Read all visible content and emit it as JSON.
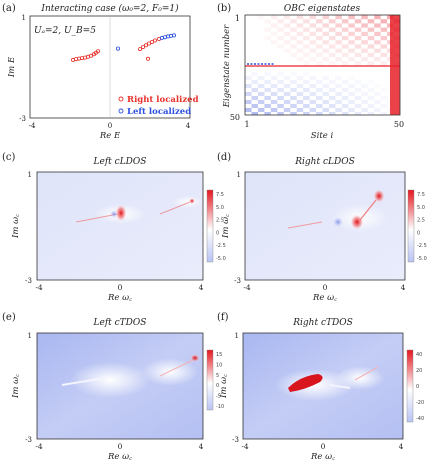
{
  "chart_data": [
    {
      "id": "a",
      "type": "scatter",
      "panel_label": "(a)",
      "title": "Interacting case (ω₀=2, F₀=1)",
      "params": "Uₐ=2, U_B=5",
      "xlabel": "Re E",
      "ylabel": "Im E",
      "xlim": [
        -4,
        4
      ],
      "ylim": [
        -3,
        1
      ],
      "x_ticks": [
        "-4",
        "0",
        "4"
      ],
      "y_ticks": [
        "1",
        "-3"
      ],
      "legend": "bottom-right",
      "series": [
        {
          "name": "Right localized",
          "color": "#e8312a",
          "points": [
            [
              -1.85,
              -0.72
            ],
            [
              -1.7,
              -0.69
            ],
            [
              -1.55,
              -0.67
            ],
            [
              -1.4,
              -0.65
            ],
            [
              -1.25,
              -0.63
            ],
            [
              -1.1,
              -0.6
            ],
            [
              -0.95,
              -0.56
            ],
            [
              -0.8,
              -0.5
            ],
            [
              -0.7,
              -0.44
            ],
            [
              -0.6,
              -0.38
            ],
            [
              1.5,
              -0.3
            ],
            [
              1.65,
              -0.22
            ],
            [
              1.8,
              -0.15
            ],
            [
              1.95,
              -0.08
            ],
            [
              2.1,
              -0.02
            ],
            [
              2.25,
              0.04
            ],
            [
              2.45,
              0.1
            ],
            [
              1.9,
              -0.68
            ]
          ]
        },
        {
          "name": "Left localized",
          "color": "#2b4fe0",
          "points": [
            [
              2.6,
              0.14
            ],
            [
              2.75,
              0.17
            ],
            [
              2.9,
              0.2
            ],
            [
              3.05,
              0.22
            ],
            [
              3.2,
              0.24
            ],
            [
              0.4,
              -0.28
            ]
          ]
        }
      ]
    },
    {
      "id": "b",
      "type": "heatmap",
      "panel_label": "(b)",
      "title": "OBC eigenstates",
      "xlabel": "Site i",
      "ylabel": "Eigenstate number",
      "x_ticks": [
        "1",
        "50"
      ],
      "y_ticks": [
        "1",
        "50"
      ]
    },
    {
      "id": "c",
      "type": "heatmap",
      "panel_label": "(c)",
      "title": "Left cLDOS",
      "xlabel": "Re ω꜀",
      "ylabel": "Im ω꜀",
      "x_ticks": [
        "-4",
        "0",
        "4"
      ],
      "y_ticks": [
        "1",
        "-3"
      ],
      "colorbar_ticks": [
        "7.5",
        "5.0",
        "2.5",
        "0",
        "-2.5",
        "-5.0"
      ],
      "colorbar_range": [
        -6,
        8
      ]
    },
    {
      "id": "d",
      "type": "heatmap",
      "panel_label": "(d)",
      "title": "Right cLDOS",
      "xlabel": "Re ω꜀",
      "ylabel": "Im ω꜀",
      "x_ticks": [
        "-4",
        "0",
        "4"
      ],
      "y_ticks": [
        "1",
        "-3"
      ],
      "colorbar_ticks": [
        "7.5",
        "5.0",
        "2.5",
        "0",
        "-2.5",
        "-5.0"
      ],
      "colorbar_range": [
        -6,
        8
      ]
    },
    {
      "id": "e",
      "type": "heatmap",
      "panel_label": "(e)",
      "title": "Left cTDOS",
      "xlabel": "Re ω꜀",
      "ylabel": "Im ω꜀",
      "x_ticks": [
        "-4",
        "0",
        "4"
      ],
      "y_ticks": [
        "1",
        "-3"
      ],
      "colorbar_ticks": [
        "15",
        "10",
        "5",
        "0",
        "-5",
        "-10"
      ],
      "colorbar_range": [
        -12,
        18
      ]
    },
    {
      "id": "f",
      "type": "heatmap",
      "panel_label": "(f)",
      "title": "Right cTDOS",
      "xlabel": "Re ω꜀",
      "ylabel": "Im ω꜀",
      "x_ticks": [
        "-4",
        "0",
        "4"
      ],
      "y_ticks": [
        "1",
        "-3"
      ],
      "colorbar_ticks": [
        "40",
        "20",
        "0",
        "-20",
        "-40"
      ],
      "colorbar_range": [
        -45,
        50
      ]
    }
  ],
  "colors": {
    "red": "#e8312a",
    "blue": "#2b4fe0",
    "map_low": "#c9d0f7",
    "map_mid": "#ffffff",
    "map_high": "#e8212a"
  }
}
